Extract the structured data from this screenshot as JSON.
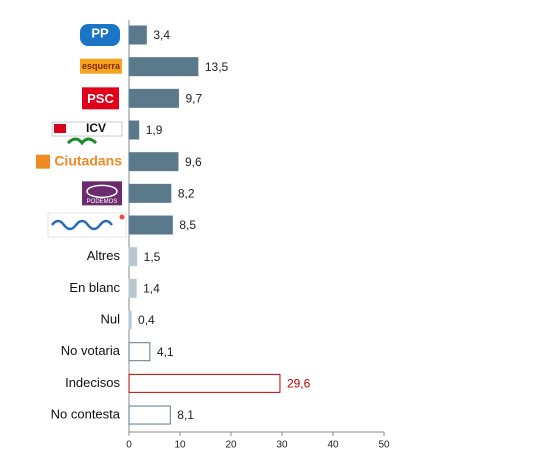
{
  "chart_data": {
    "type": "hbar",
    "categories": [
      "PP",
      "esquerra",
      "PSC",
      "ICV",
      "Ciutadans",
      "PODEMOS",
      null,
      "Altres",
      "En blanc",
      "Nul",
      "No votaria",
      "Indecisos",
      "No contesta"
    ],
    "values": [
      3.4,
      13.5,
      9.7,
      1.9,
      9.6,
      8.2,
      8.5,
      1.5,
      1.4,
      0.4,
      4.1,
      29.6,
      8.1
    ],
    "value_labels": [
      "3,4",
      "13,5",
      "9,7",
      "1,9",
      "9,6",
      "8,2",
      "8,5",
      "1,5",
      "1,4",
      "0,4",
      "4,1",
      "29,6",
      "8,1"
    ],
    "colors": [
      "#5a7a8c",
      "#5a7a8c",
      "#5a7a8c",
      "#5a7a8c",
      "#5a7a8c",
      "#5a7a8c",
      "#5a7a8c",
      "#b9c7d1",
      "#b9c7d1",
      "#b9c7d1",
      "#ffffff",
      "#ffffff",
      "#ffffff"
    ],
    "edge_colors": [
      "#5a7a8c",
      "#5a7a8c",
      "#5a7a8c",
      "#5a7a8c",
      "#5a7a8c",
      "#5a7a8c",
      "#5a7a8c",
      "#b9c7d1",
      "#b9c7d1",
      "#b9c7d1",
      "#5a7a8c",
      "#c00000",
      "#5a7a8c"
    ],
    "value_label_colors": [
      "#222222",
      "#222222",
      "#222222",
      "#222222",
      "#222222",
      "#222222",
      "#222222",
      "#222222",
      "#222222",
      "#222222",
      "#222222",
      "#c00000",
      "#222222"
    ],
    "xlim": [
      0,
      50
    ],
    "xticks": [
      0,
      10,
      20,
      30,
      40,
      50
    ]
  }
}
